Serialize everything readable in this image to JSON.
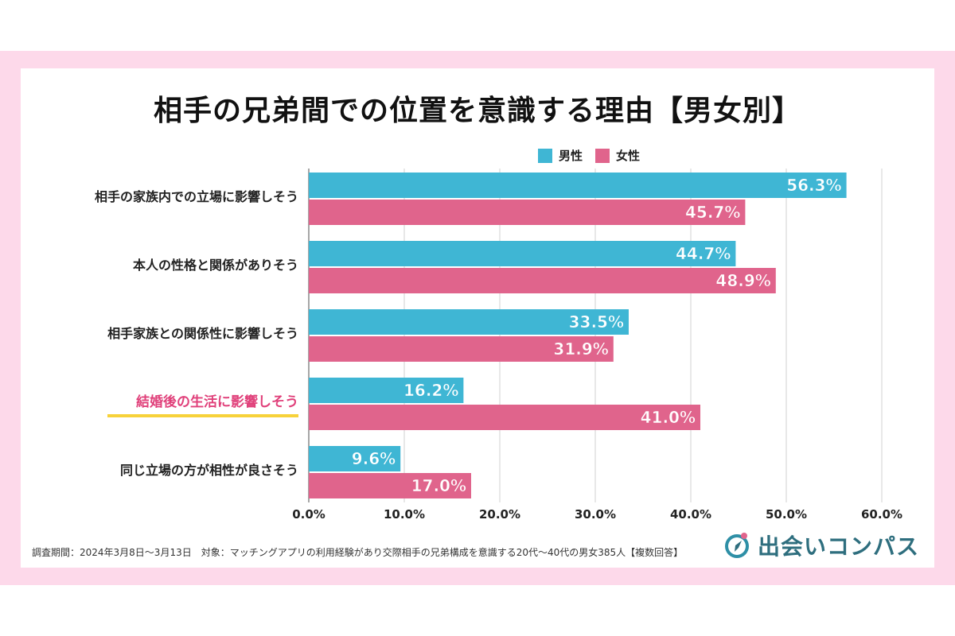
{
  "chart_data": {
    "type": "bar",
    "orientation": "horizontal",
    "title": "相手の兄弟間での位置を意識する理由【男女別】",
    "categories": [
      "相手の家族内での立場に影響しそう",
      "本人の性格と関係がありそう",
      "相手家族との関係性に影響しそう",
      "結婚後の生活に影響しそう",
      "同じ立場の方が相性が良さそう"
    ],
    "highlighted_category": "結婚後の生活に影響しそう",
    "series": [
      {
        "name": "男性",
        "color": "#3fb6d4",
        "values": [
          56.3,
          44.7,
          33.5,
          16.2,
          9.6
        ],
        "labels": [
          "56.3%",
          "44.7%",
          "33.5%",
          "16.2%",
          "9.6%"
        ]
      },
      {
        "name": "女性",
        "color": "#e0648c",
        "values": [
          45.7,
          48.9,
          31.9,
          41.0,
          17.0
        ],
        "labels": [
          "45.7%",
          "48.9%",
          "31.9%",
          "41.0%",
          "17.0%"
        ]
      }
    ],
    "xlim": [
      0,
      60
    ],
    "ticks": [
      0,
      10,
      20,
      30,
      40,
      50,
      60
    ],
    "tick_labels": [
      "0.0%",
      "10.0%",
      "20.0%",
      "30.0%",
      "40.0%",
      "50.0%",
      "60.0%"
    ],
    "grid": true,
    "legend_position": "top-right"
  },
  "colors": {
    "male": "#3fb6d4",
    "female": "#e0648c",
    "highlight_text": "#e0407a",
    "highlight_underline": "#f7d23a",
    "frame": "#fdd9ea"
  },
  "footer": {
    "note": "調査期間：2024年3月8日〜3月13日　対象：マッチングアプリの利用経験があり交際相手の兄弟構成を意識する20代〜40代の男女385人【複数回答】"
  },
  "logo": {
    "text": "出会いコンパス"
  }
}
